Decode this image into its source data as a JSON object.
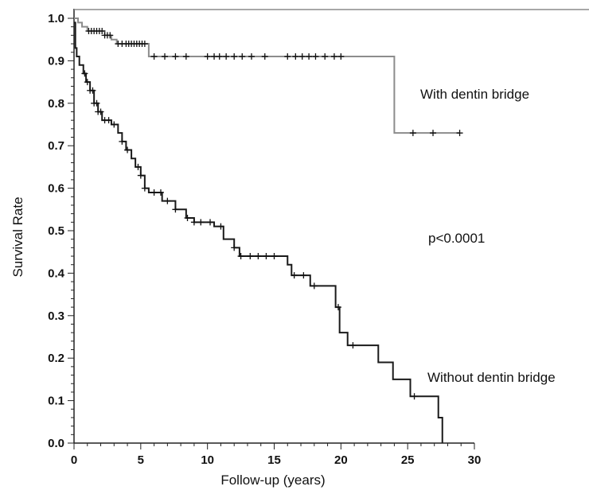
{
  "chart_data": {
    "type": "line",
    "title": "",
    "xlabel": "Follow-up (years)",
    "ylabel": "Survival Rate",
    "xlim": [
      0,
      30
    ],
    "ylim": [
      0,
      1.0
    ],
    "x_ticks": [
      "0",
      "5",
      "10",
      "15",
      "20",
      "25",
      "30"
    ],
    "y_ticks": [
      "0.0",
      "0.1",
      "0.2",
      "0.3",
      "0.4",
      "0.5",
      "0.6",
      "0.7",
      "0.8",
      "0.9",
      "1.0"
    ],
    "grid": false,
    "series": [
      {
        "name": "With dentin bridge",
        "color": "#8c8c8c",
        "step": [
          [
            0,
            1.0
          ],
          [
            0.3,
            0.99
          ],
          [
            0.6,
            0.98
          ],
          [
            1.0,
            0.97
          ],
          [
            2.3,
            0.96
          ],
          [
            2.8,
            0.95
          ],
          [
            3.2,
            0.94
          ],
          [
            5.6,
            0.91
          ],
          [
            24.0,
            0.91
          ],
          [
            24.0,
            0.73
          ],
          [
            28.9,
            0.73
          ]
        ],
        "censored_x": [
          1.1,
          1.3,
          1.5,
          1.7,
          1.9,
          2.1,
          2.3,
          2.5,
          2.7,
          3.3,
          3.6,
          3.9,
          4.1,
          4.3,
          4.5,
          4.7,
          4.9,
          5.1,
          5.3,
          6.0,
          6.8,
          7.6,
          8.4,
          10.0,
          10.5,
          10.9,
          11.4,
          12.0,
          12.6,
          13.3,
          14.3,
          16.0,
          16.6,
          17.1,
          17.6,
          18.1,
          18.8,
          19.5,
          20.0,
          25.4,
          26.9,
          28.9
        ]
      },
      {
        "name": "Without dentin bridge",
        "color": "#1a1a1a",
        "step": [
          [
            0,
            0.99
          ],
          [
            0.1,
            0.93
          ],
          [
            0.2,
            0.91
          ],
          [
            0.4,
            0.89
          ],
          [
            0.7,
            0.87
          ],
          [
            0.9,
            0.85
          ],
          [
            1.2,
            0.83
          ],
          [
            1.5,
            0.8
          ],
          [
            1.8,
            0.78
          ],
          [
            2.1,
            0.76
          ],
          [
            2.8,
            0.75
          ],
          [
            3.3,
            0.73
          ],
          [
            3.6,
            0.71
          ],
          [
            3.9,
            0.69
          ],
          [
            4.3,
            0.67
          ],
          [
            4.6,
            0.65
          ],
          [
            5.0,
            0.63
          ],
          [
            5.3,
            0.6
          ],
          [
            5.6,
            0.59
          ],
          [
            6.6,
            0.57
          ],
          [
            7.6,
            0.55
          ],
          [
            8.4,
            0.53
          ],
          [
            9.0,
            0.52
          ],
          [
            10.5,
            0.51
          ],
          [
            11.2,
            0.48
          ],
          [
            12.0,
            0.46
          ],
          [
            12.4,
            0.44
          ],
          [
            16.0,
            0.42
          ],
          [
            16.3,
            0.395
          ],
          [
            17.7,
            0.37
          ],
          [
            19.6,
            0.32
          ],
          [
            19.9,
            0.26
          ],
          [
            20.5,
            0.23
          ],
          [
            22.8,
            0.19
          ],
          [
            23.9,
            0.15
          ],
          [
            25.2,
            0.11
          ],
          [
            27.3,
            0.06
          ],
          [
            27.6,
            0.0
          ]
        ],
        "censored_x": [
          0.8,
          1.0,
          1.2,
          1.4,
          1.5,
          1.7,
          1.8,
          2.0,
          2.3,
          2.6,
          3.0,
          3.6,
          4.0,
          4.8,
          5.0,
          5.3,
          6.0,
          6.5,
          7.0,
          7.6,
          8.5,
          9.0,
          9.5,
          10.2,
          11.0,
          12.0,
          12.5,
          13.2,
          13.8,
          14.4,
          15.0,
          16.5,
          17.2,
          18.0,
          19.8,
          20.9,
          25.5
        ]
      }
    ],
    "annotations": {
      "with_label": "With dentin bridge",
      "without_label": "Without dentin bridge",
      "p_value": "p<0.0001"
    }
  }
}
